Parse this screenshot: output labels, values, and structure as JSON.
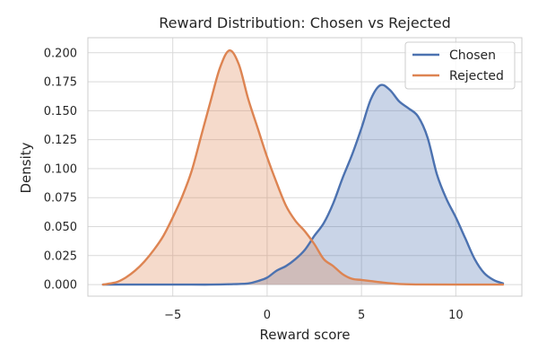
{
  "chart_data": {
    "type": "area",
    "title": "Reward Distribution: Chosen vs Rejected",
    "xlabel": "Reward score",
    "ylabel": "Density",
    "xlim": [
      -9.5,
      13.5
    ],
    "ylim": [
      -0.01,
      0.213
    ],
    "x_ticks": [
      -5,
      0,
      5,
      10
    ],
    "x_tick_labels": [
      "−5",
      "0",
      "5",
      "10"
    ],
    "y_ticks": [
      0.0,
      0.025,
      0.05,
      0.075,
      0.1,
      0.125,
      0.15,
      0.175,
      0.2
    ],
    "y_tick_labels": [
      "0.000",
      "0.025",
      "0.050",
      "0.075",
      "0.100",
      "0.125",
      "0.150",
      "0.175",
      "0.200"
    ],
    "grid": true,
    "legend_position": "top-right",
    "series": [
      {
        "name": "Chosen",
        "color": "#4c72b0",
        "points": [
          [
            -8.7,
            0.0
          ],
          [
            -6,
            0.0
          ],
          [
            -4,
            0.0
          ],
          [
            -3,
            0.0
          ],
          [
            -2,
            0.0003
          ],
          [
            -1,
            0.001
          ],
          [
            -0.5,
            0.003
          ],
          [
            0,
            0.006
          ],
          [
            0.5,
            0.012
          ],
          [
            1,
            0.016
          ],
          [
            1.5,
            0.022
          ],
          [
            2,
            0.03
          ],
          [
            2.5,
            0.042
          ],
          [
            3,
            0.053
          ],
          [
            3.5,
            0.07
          ],
          [
            4,
            0.092
          ],
          [
            4.5,
            0.112
          ],
          [
            5,
            0.135
          ],
          [
            5.5,
            0.16
          ],
          [
            6,
            0.172
          ],
          [
            6.5,
            0.168
          ],
          [
            7,
            0.158
          ],
          [
            7.5,
            0.152
          ],
          [
            8,
            0.145
          ],
          [
            8.5,
            0.127
          ],
          [
            9,
            0.095
          ],
          [
            9.5,
            0.074
          ],
          [
            10,
            0.058
          ],
          [
            10.5,
            0.04
          ],
          [
            11,
            0.022
          ],
          [
            11.5,
            0.01
          ],
          [
            12,
            0.004
          ],
          [
            12.5,
            0.001
          ]
        ]
      },
      {
        "name": "Rejected",
        "color": "#dd8452",
        "points": [
          [
            -8.7,
            0.0
          ],
          [
            -8,
            0.002
          ],
          [
            -7.5,
            0.006
          ],
          [
            -7,
            0.012
          ],
          [
            -6.5,
            0.02
          ],
          [
            -6,
            0.03
          ],
          [
            -5.5,
            0.042
          ],
          [
            -5,
            0.058
          ],
          [
            -4.5,
            0.076
          ],
          [
            -4,
            0.098
          ],
          [
            -3.5,
            0.128
          ],
          [
            -3,
            0.158
          ],
          [
            -2.5,
            0.187
          ],
          [
            -2,
            0.202
          ],
          [
            -1.5,
            0.19
          ],
          [
            -1,
            0.16
          ],
          [
            -0.5,
            0.135
          ],
          [
            0,
            0.11
          ],
          [
            0.5,
            0.088
          ],
          [
            1,
            0.068
          ],
          [
            1.5,
            0.055
          ],
          [
            2,
            0.046
          ],
          [
            2.5,
            0.035
          ],
          [
            3,
            0.022
          ],
          [
            3.5,
            0.016
          ],
          [
            4,
            0.009
          ],
          [
            4.5,
            0.005
          ],
          [
            5,
            0.004
          ],
          [
            5.5,
            0.003
          ],
          [
            6,
            0.002
          ],
          [
            7,
            0.0005
          ],
          [
            8,
            0.0001
          ],
          [
            10,
            0.0
          ],
          [
            12.5,
            0.0
          ]
        ]
      }
    ]
  }
}
